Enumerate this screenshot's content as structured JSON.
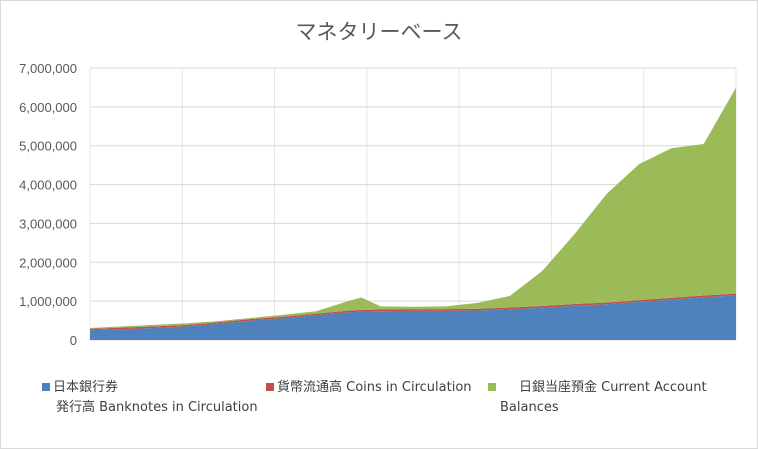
{
  "chart_data": {
    "type": "area",
    "stacked": true,
    "title": "マネタリーベース",
    "xlabel": "",
    "ylabel": "",
    "ylim": [
      0,
      7000000
    ],
    "yticks": [
      0,
      1000000,
      2000000,
      3000000,
      4000000,
      5000000,
      6000000,
      7000000
    ],
    "ytick_labels": [
      "0",
      "1,000,000",
      "2,000,000",
      "3,000,000",
      "4,000,000",
      "5,000,000",
      "6,000,000",
      "7,000,000"
    ],
    "grid": true,
    "legend_position": "bottom",
    "x": [
      0,
      5,
      10,
      15,
      20,
      25,
      30,
      35,
      40,
      42,
      45,
      50,
      55,
      60,
      65,
      70,
      75,
      80,
      85,
      90,
      95,
      100
    ],
    "series": [
      {
        "name": "日本銀行券発行高 Banknotes in Circulation",
        "color": "#4f81bd",
        "values": [
          250000,
          280000,
          310000,
          350000,
          420000,
          500000,
          560000,
          640000,
          710000,
          730000,
          740000,
          750000,
          750000,
          760000,
          790000,
          830000,
          880000,
          920000,
          980000,
          1040000,
          1100000,
          1150000
        ]
      },
      {
        "name": "貨幣流通高 Coins in Circulation",
        "color": "#c0504d",
        "values": [
          40000,
          40000,
          40000,
          40000,
          40000,
          40000,
          40000,
          40000,
          45000,
          45000,
          45000,
          45000,
          45000,
          45000,
          45000,
          45000,
          45000,
          45000,
          45000,
          45000,
          45000,
          45000
        ]
      },
      {
        "name": "日銀当座預金 Current Account Balances",
        "color": "#9bbb59",
        "values": [
          20000,
          30000,
          40000,
          40000,
          30000,
          30000,
          50000,
          60000,
          250000,
          320000,
          80000,
          60000,
          70000,
          150000,
          300000,
          900000,
          1800000,
          2800000,
          3500000,
          3850000,
          3900000,
          5300000
        ]
      }
    ]
  },
  "legend": [
    {
      "name": "日本銀行券\n発行高 Banknotes in Circulation"
    },
    {
      "name": "貨幣流通高 Coins in Circulation"
    },
    {
      "name": "日銀当座預金 Current Account\nBalances"
    }
  ]
}
